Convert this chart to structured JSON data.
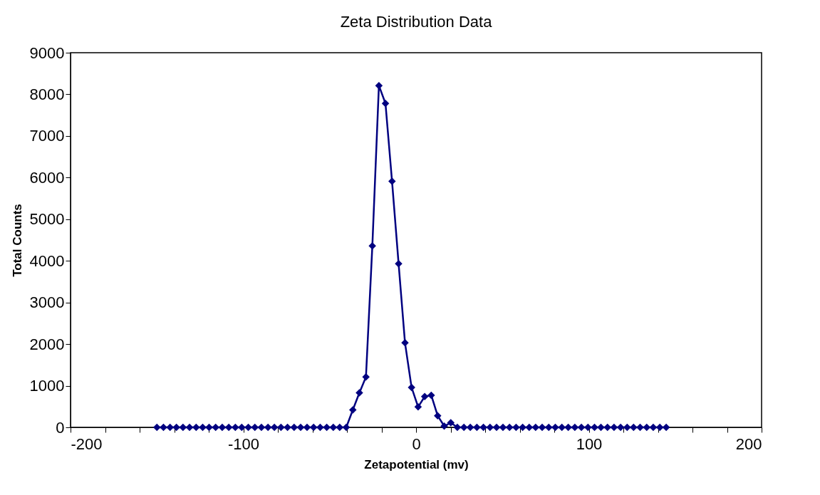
{
  "chart_data": {
    "type": "line",
    "title": "Zeta Distribution Data",
    "xlabel": "Zetapotential (mv)",
    "ylabel": "Total Counts",
    "x": [
      -150,
      -146.2,
      -142.4,
      -138.7,
      -134.9,
      -131.1,
      -127.3,
      -123.5,
      -119.8,
      -116,
      -112.2,
      -108.4,
      -104.6,
      -100.9,
      -97.1,
      -93.3,
      -89.5,
      -85.7,
      -82,
      -78.2,
      -74.4,
      -70.6,
      -66.8,
      -63.1,
      -59.3,
      -55.5,
      -51.7,
      -47.9,
      -44.2,
      -40.4,
      -36.6,
      -32.8,
      -29,
      -25.3,
      -21.5,
      -17.7,
      -13.9,
      -10.1,
      -6.4,
      -2.6,
      1.2,
      5,
      8.8,
      12.5,
      16.3,
      20.1,
      23.9,
      27.7,
      31.4,
      35.2,
      39,
      42.8,
      46.6,
      50.3,
      54.1,
      57.9,
      61.7,
      65.5,
      69.2,
      73,
      76.8,
      80.6,
      84.4,
      88.1,
      91.9,
      95.7,
      99.5,
      103.3,
      107,
      110.8,
      114.6,
      118.4,
      122.2,
      125.9,
      129.7,
      133.5,
      137.3,
      141.1,
      144.8
    ],
    "series": [
      {
        "color": "#000080",
        "values": [
          0,
          0,
          0,
          0,
          0,
          0,
          0,
          0,
          0,
          0,
          0,
          0,
          0,
          0,
          0,
          0,
          0,
          0,
          0,
          0,
          0,
          0,
          0,
          0,
          0,
          0,
          0,
          0,
          0,
          0,
          420,
          830,
          1210,
          4360,
          8210,
          7780,
          5910,
          3930,
          2030,
          960,
          490,
          740,
          770,
          280,
          30,
          110,
          0,
          0,
          0,
          0,
          0,
          0,
          0,
          0,
          0,
          0,
          0,
          0,
          0,
          0,
          0,
          0,
          0,
          0,
          0,
          0,
          0,
          0,
          0,
          0,
          0,
          0,
          0,
          0,
          0,
          0,
          0,
          0,
          0
        ]
      }
    ],
    "xlim": [
      -200,
      200
    ],
    "xticks": [
      -200,
      {
        "value": -180,
        "label": null
      },
      {
        "value": -160,
        "label": null
      },
      {
        "value": -140,
        "label": null
      },
      {
        "value": -120,
        "label": null
      },
      -100,
      {
        "value": -80,
        "label": null
      },
      {
        "value": -60,
        "label": null
      },
      {
        "value": -40,
        "label": null
      },
      {
        "value": -20,
        "label": null
      },
      0,
      {
        "value": 20,
        "label": null
      },
      {
        "value": 40,
        "label": null
      },
      {
        "value": 60,
        "label": null
      },
      {
        "value": 80,
        "label": null
      },
      100,
      {
        "value": 120,
        "label": null
      },
      {
        "value": 140,
        "label": null
      },
      {
        "value": 160,
        "label": null
      },
      {
        "value": 180,
        "label": null
      },
      200
    ],
    "ylim": [
      0,
      9000
    ],
    "yticks": [
      0,
      1000,
      2000,
      3000,
      4000,
      5000,
      6000,
      7000,
      8000,
      9000
    ],
    "grid": false,
    "marker": "diamond",
    "line_style": "solid"
  }
}
